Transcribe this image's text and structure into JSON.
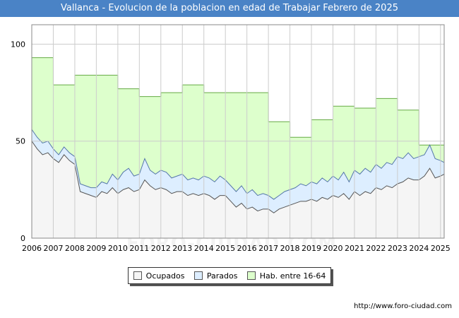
{
  "title": "Vallanca - Evolucion de la poblacion en edad de Trabajar Febrero de 2025",
  "footer_url": "http://www.foro-ciudad.com",
  "watermark": "FORO-CIUDAD.COM",
  "colors": {
    "title_bg": "#4a83c6",
    "ocupados_fill": "#f5f5f5",
    "ocupados_line": "#555555",
    "parados_fill": "#ddeeff",
    "parados_line": "#5577aa",
    "hab_fill": "#ddffcc",
    "hab_line": "#66aa44",
    "grid": "#cccccc"
  },
  "legend": {
    "ocupados": "Ocupados",
    "parados": "Parados",
    "hab": "Hab. entre 16-64"
  },
  "chart_data": {
    "type": "area",
    "xlim": [
      2006,
      2025.17
    ],
    "ylim": [
      0,
      110
    ],
    "x_ticks": [
      "2006",
      "2007",
      "2008",
      "2009",
      "2010",
      "2011",
      "2012",
      "2013",
      "2014",
      "2015",
      "2016",
      "2017",
      "2018",
      "2019",
      "2020",
      "2021",
      "2022",
      "2023",
      "2024",
      "2025"
    ],
    "y_ticks": [
      "0",
      "50",
      "100"
    ],
    "grid": true,
    "legend_position": "bottom",
    "hab_16_64": {
      "x": [
        2006,
        2007,
        2008,
        2010,
        2011,
        2012,
        2013,
        2014,
        2016,
        2017,
        2018,
        2019,
        2020,
        2021,
        2022,
        2023,
        2024
      ],
      "y": [
        93,
        79,
        84,
        77,
        73,
        75,
        79,
        75,
        75,
        60,
        52,
        61,
        68,
        67,
        72,
        66,
        48
      ],
      "end_x": 2025.17
    },
    "ocupados": {
      "x": [
        2006,
        2006.25,
        2006.5,
        2006.75,
        2007,
        2007.25,
        2007.5,
        2007.75,
        2008,
        2008.25,
        2008.5,
        2008.75,
        2009,
        2009.25,
        2009.5,
        2009.75,
        2010,
        2010.25,
        2010.5,
        2010.75,
        2011,
        2011.25,
        2011.5,
        2011.75,
        2012,
        2012.25,
        2012.5,
        2012.75,
        2013,
        2013.25,
        2013.5,
        2013.75,
        2014,
        2014.25,
        2014.5,
        2014.75,
        2015,
        2015.25,
        2015.5,
        2015.75,
        2016,
        2016.25,
        2016.5,
        2016.75,
        2017,
        2017.25,
        2017.5,
        2017.75,
        2018,
        2018.25,
        2018.5,
        2018.75,
        2019,
        2019.25,
        2019.5,
        2019.75,
        2020,
        2020.25,
        2020.5,
        2020.75,
        2021,
        2021.25,
        2021.5,
        2021.75,
        2022,
        2022.25,
        2022.5,
        2022.75,
        2023,
        2023.25,
        2023.5,
        2023.75,
        2024,
        2024.25,
        2024.5,
        2024.75,
        2025,
        2025.17
      ],
      "y": [
        50,
        46,
        43,
        44,
        41,
        39,
        43,
        40,
        38,
        24,
        23,
        22,
        21,
        24,
        23,
        26,
        23,
        25,
        26,
        24,
        25,
        30,
        27,
        25,
        26,
        25,
        23,
        24,
        24,
        22,
        23,
        22,
        23,
        22,
        20,
        22,
        22,
        19,
        16,
        18,
        15,
        16,
        14,
        15,
        15,
        13,
        15,
        16,
        17,
        18,
        19,
        19,
        20,
        19,
        21,
        20,
        22,
        21,
        23,
        20,
        24,
        22,
        24,
        23,
        26,
        25,
        27,
        26,
        28,
        29,
        31,
        30,
        30,
        32,
        36,
        31,
        32,
        33
      ]
    },
    "total_activos": {
      "x": [
        2006,
        2006.25,
        2006.5,
        2006.75,
        2007,
        2007.25,
        2007.5,
        2007.75,
        2008,
        2008.25,
        2008.5,
        2008.75,
        2009,
        2009.25,
        2009.5,
        2009.75,
        2010,
        2010.25,
        2010.5,
        2010.75,
        2011,
        2011.25,
        2011.5,
        2011.75,
        2012,
        2012.25,
        2012.5,
        2012.75,
        2013,
        2013.25,
        2013.5,
        2013.75,
        2014,
        2014.25,
        2014.5,
        2014.75,
        2015,
        2015.25,
        2015.5,
        2015.75,
        2016,
        2016.25,
        2016.5,
        2016.75,
        2017,
        2017.25,
        2017.5,
        2017.75,
        2018,
        2018.25,
        2018.5,
        2018.75,
        2019,
        2019.25,
        2019.5,
        2019.75,
        2020,
        2020.25,
        2020.5,
        2020.75,
        2021,
        2021.25,
        2021.5,
        2021.75,
        2022,
        2022.25,
        2022.5,
        2022.75,
        2023,
        2023.25,
        2023.5,
        2023.75,
        2024,
        2024.25,
        2024.5,
        2024.75,
        2025,
        2025.17
      ],
      "y": [
        56,
        52,
        49,
        50,
        46,
        43,
        47,
        44,
        42,
        28,
        27,
        26,
        26,
        29,
        28,
        33,
        30,
        34,
        36,
        32,
        33,
        41,
        35,
        33,
        35,
        34,
        31,
        32,
        33,
        30,
        31,
        30,
        32,
        31,
        29,
        32,
        30,
        27,
        24,
        27,
        23,
        25,
        22,
        23,
        22,
        20,
        22,
        24,
        25,
        26,
        28,
        27,
        29,
        28,
        31,
        29,
        32,
        30,
        34,
        29,
        35,
        33,
        36,
        34,
        38,
        36,
        39,
        38,
        42,
        41,
        44,
        41,
        42,
        43,
        48,
        41,
        40,
        39
      ]
    }
  }
}
